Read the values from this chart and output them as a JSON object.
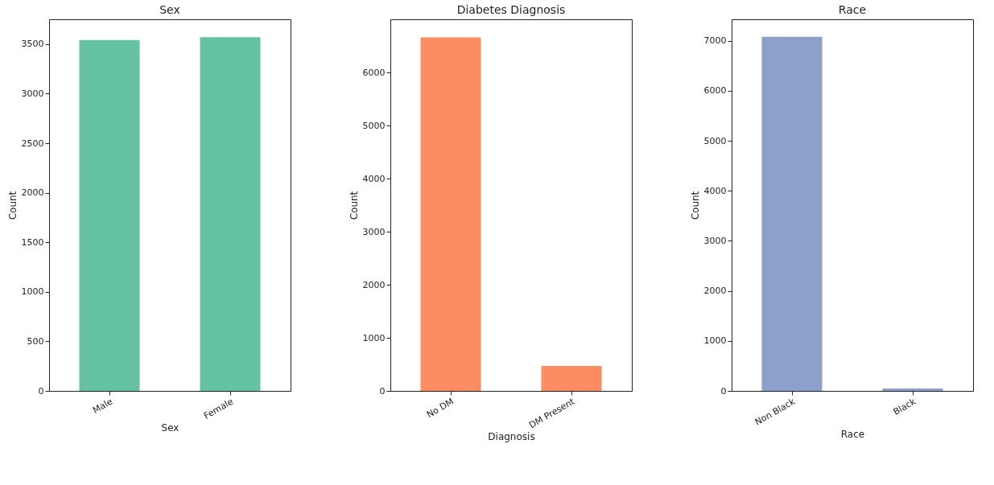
{
  "chart_data": [
    {
      "type": "bar",
      "title": "Sex",
      "xlabel": "Sex",
      "ylabel": "Count",
      "categories": [
        "Male",
        "Female"
      ],
      "values": [
        3540,
        3570
      ],
      "color": "#66c2a5",
      "ylim": [
        0,
        3750
      ],
      "yticks": [
        0,
        500,
        1000,
        1500,
        2000,
        2500,
        3000,
        3500
      ],
      "grid": false
    },
    {
      "type": "bar",
      "title": "Diabetes Diagnosis",
      "xlabel": "Diagnosis",
      "ylabel": "Count",
      "categories": [
        "No DM",
        "DM Present"
      ],
      "values": [
        6660,
        470
      ],
      "color": "#fc8d62",
      "ylim": [
        0,
        7000
      ],
      "yticks": [
        0,
        1000,
        2000,
        3000,
        4000,
        5000,
        6000
      ],
      "grid": false
    },
    {
      "type": "bar",
      "title": "Race",
      "xlabel": "Race",
      "ylabel": "Count",
      "categories": [
        "Non Black",
        "Black"
      ],
      "values": [
        7080,
        50
      ],
      "color": "#8da0cb",
      "ylim": [
        0,
        7430
      ],
      "yticks": [
        0,
        1000,
        2000,
        3000,
        4000,
        5000,
        6000,
        7000
      ],
      "grid": false
    }
  ]
}
